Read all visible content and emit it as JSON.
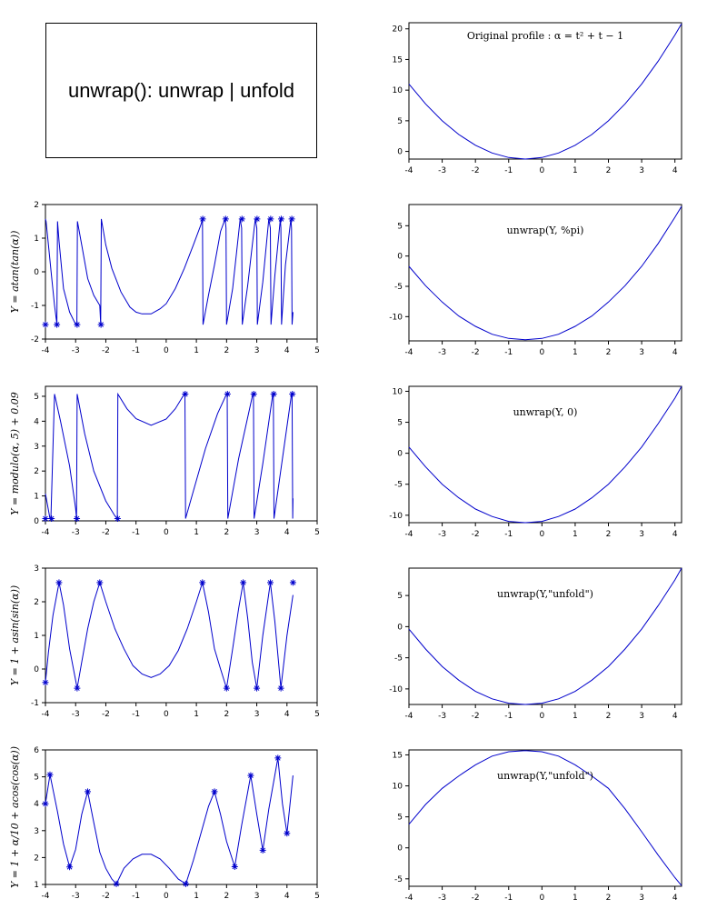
{
  "header": {
    "title": "unwrap(): unwrap | unfold"
  },
  "chart_data": [
    {
      "id": "original",
      "type": "line",
      "xlim": [
        -4,
        4.2
      ],
      "ylim": [
        -1.25,
        21
      ],
      "xticks": [
        -4,
        -3,
        -2,
        -1,
        0,
        1,
        2,
        3,
        4
      ],
      "yticks": [
        0,
        5,
        10,
        15,
        20
      ],
      "annotation": "Original profile :  α = t² + t − 1",
      "ylabel": "",
      "markers": false,
      "series": [
        {
          "color": "#0000cc",
          "x": [
            -4,
            -3.5,
            -3,
            -2.5,
            -2,
            -1.5,
            -1,
            -0.5,
            0,
            0.5,
            1,
            1.5,
            2,
            2.5,
            3,
            3.5,
            4,
            4.2
          ],
          "y": [
            11,
            7.75,
            5,
            2.75,
            1,
            -0.25,
            -1,
            -1.25,
            -1,
            -0.25,
            1,
            2.75,
            5,
            7.75,
            11,
            14.75,
            19,
            20.84
          ]
        }
      ]
    },
    {
      "id": "atan",
      "type": "line",
      "xlim": [
        -4,
        5
      ],
      "ylim": [
        -2,
        2
      ],
      "xticks": [
        -4,
        -3,
        -2,
        -1,
        0,
        1,
        2,
        3,
        4,
        5
      ],
      "yticks": [
        -2,
        -1,
        0,
        1,
        2
      ],
      "ylabel": "Y = atan(tan(α))",
      "annotation": "",
      "markers": true,
      "series": [
        {
          "color": "#0000cc",
          "x": [
            -4,
            -3.98,
            -3.9,
            -3.8,
            -3.7,
            -3.62,
            -3.6,
            -3.55,
            -3.4,
            -3.2,
            -3.0,
            -2.96,
            -2.94,
            -2.8,
            -2.6,
            -2.4,
            -2.2,
            -2.17,
            -2.15,
            -2.0,
            -1.8,
            -1.5,
            -1.2,
            -1.0,
            -0.8,
            -0.5,
            -0.2,
            0,
            0.3,
            0.6,
            0.9,
            1.15,
            1.2,
            1.22,
            1.4,
            1.6,
            1.8,
            1.95,
            1.98,
            2.0,
            2.2,
            2.45,
            2.5,
            2.52,
            2.7,
            2.95,
            3.0,
            3.02,
            3.2,
            3.4,
            3.45,
            3.47,
            3.6,
            3.78,
            3.8,
            3.82,
            3.95,
            4.13,
            4.15,
            4.17,
            4.2
          ],
          "y": [
            1.57,
            1.5,
            0.8,
            -0.1,
            -1.0,
            -1.55,
            1.5,
            0.9,
            -0.5,
            -1.2,
            -1.56,
            -1.57,
            1.5,
            0.8,
            -0.2,
            -0.7,
            -1.0,
            -1.56,
            1.57,
            0.8,
            0.1,
            -0.6,
            -1.05,
            -1.2,
            -1.25,
            -1.25,
            -1.1,
            -0.95,
            -0.5,
            0.1,
            0.8,
            1.4,
            1.57,
            -1.57,
            -0.7,
            0.2,
            1.2,
            1.57,
            1.3,
            -1.57,
            -0.5,
            1.57,
            1.3,
            -1.57,
            -0.4,
            1.57,
            1.3,
            -1.57,
            -0.3,
            1.57,
            1.3,
            -1.57,
            -0.1,
            1.57,
            1.3,
            -1.57,
            0.2,
            1.57,
            1.3,
            -1.57,
            -1.2
          ],
          "markers_x": [
            -4,
            -3.62,
            -2.95,
            -2.16,
            1.21,
            1.97,
            2.51,
            3.01,
            3.46,
            3.81,
            4.16
          ],
          "markers_y": [
            -1.57,
            -1.57,
            -1.57,
            -1.57,
            1.57,
            1.57,
            1.57,
            1.57,
            1.57,
            1.57,
            1.57
          ]
        }
      ]
    },
    {
      "id": "unwrap-pi",
      "type": "line",
      "xlim": [
        -4,
        4.2
      ],
      "ylim": [
        -14,
        8.5
      ],
      "xticks": [
        -4,
        -3,
        -2,
        -1,
        0,
        1,
        2,
        3,
        4
      ],
      "yticks": [
        -10,
        -5,
        0,
        5
      ],
      "annotation": "unwrap(Y, %pi)",
      "ylabel": "",
      "markers": false,
      "series": [
        {
          "color": "#0000cc",
          "x": [
            -4,
            -3.5,
            -3,
            -2.5,
            -2,
            -1.5,
            -1,
            -0.5,
            0,
            0.5,
            1,
            1.5,
            2,
            2.5,
            3,
            3.5,
            4,
            4.2
          ],
          "y": [
            -1.7,
            -4.9,
            -7.6,
            -9.9,
            -11.6,
            -12.9,
            -13.6,
            -13.8,
            -13.6,
            -12.9,
            -11.6,
            -9.9,
            -7.6,
            -4.9,
            -1.7,
            2.1,
            6.4,
            8.2
          ]
        }
      ]
    },
    {
      "id": "modulo",
      "type": "line",
      "xlim": [
        -4,
        5
      ],
      "ylim": [
        0,
        5.4
      ],
      "xticks": [
        -4,
        -3,
        -2,
        -1,
        0,
        1,
        2,
        3,
        4,
        5
      ],
      "yticks": [
        0,
        1,
        2,
        3,
        4,
        5
      ],
      "ylabel": "Y = modulo(α, 5) + 0.09",
      "annotation": "",
      "markers": true,
      "series": [
        {
          "color": "#0000cc",
          "x": [
            -4,
            -3.85,
            -3.82,
            -3.7,
            -3.5,
            -3.2,
            -3.0,
            -2.97,
            -2.95,
            -2.7,
            -2.4,
            -2.0,
            -1.7,
            -1.62,
            -1.6,
            -1.3,
            -1.0,
            -0.5,
            0,
            0.3,
            0.6,
            0.62,
            0.64,
            0.9,
            1.3,
            1.7,
            2.0,
            2.02,
            2.04,
            2.4,
            2.87,
            2.89,
            2.91,
            3.2,
            3.53,
            3.55,
            3.57,
            3.85,
            4.15,
            4.17,
            4.19,
            4.2
          ],
          "y": [
            1.09,
            0.09,
            0.09,
            5.09,
            4.0,
            2.2,
            0.5,
            0.09,
            5.09,
            3.5,
            2.0,
            0.8,
            0.2,
            0.09,
            5.09,
            4.5,
            4.1,
            3.84,
            4.09,
            4.5,
            5.09,
            5.09,
            0.09,
            1.2,
            2.9,
            4.3,
            5.09,
            5.09,
            0.09,
            2.5,
            5.09,
            5.09,
            0.09,
            2.3,
            5.09,
            5.09,
            0.09,
            2.5,
            5.09,
            5.09,
            0.09,
            0.9
          ],
          "markers_x": [
            -4,
            -3.8,
            -2.96,
            -1.61,
            0.63,
            2.03,
            2.9,
            3.56,
            4.18
          ],
          "markers_y": [
            0.09,
            0.09,
            0.09,
            0.09,
            5.09,
            5.09,
            5.09,
            5.09,
            5.09
          ]
        }
      ]
    },
    {
      "id": "unwrap-0",
      "type": "line",
      "xlim": [
        -4,
        4.2
      ],
      "ylim": [
        -11.2,
        10.8
      ],
      "xticks": [
        -4,
        -3,
        -2,
        -1,
        0,
        1,
        2,
        3,
        4
      ],
      "yticks": [
        -10,
        -5,
        0,
        5,
        10
      ],
      "annotation": "unwrap(Y, 0)",
      "ylabel": "",
      "markers": false,
      "series": [
        {
          "color": "#0000cc",
          "x": [
            -4,
            -3.5,
            -3,
            -2.5,
            -2,
            -1.5,
            -1,
            -0.5,
            0,
            0.5,
            1,
            1.5,
            2,
            2.5,
            3,
            3.5,
            4,
            4.2
          ],
          "y": [
            1.0,
            -2.2,
            -5,
            -7.2,
            -9,
            -10.2,
            -11,
            -11.2,
            -11,
            -10.2,
            -9,
            -7.2,
            -5,
            -2.2,
            1,
            4.8,
            8.9,
            10.8
          ]
        }
      ]
    },
    {
      "id": "asin",
      "type": "line",
      "xlim": [
        -4,
        5
      ],
      "ylim": [
        -1,
        3
      ],
      "xticks": [
        -4,
        -3,
        -2,
        -1,
        0,
        1,
        2,
        3,
        4,
        5
      ],
      "yticks": [
        -1,
        0,
        1,
        2,
        3
      ],
      "ylabel": "Y = 1 + asin(sin(α))",
      "annotation": "",
      "markers": true,
      "series": [
        {
          "color": "#0000cc",
          "x": [
            -4,
            -3.9,
            -3.75,
            -3.55,
            -3.4,
            -3.2,
            -2.95,
            -2.8,
            -2.6,
            -2.4,
            -2.2,
            -2.0,
            -1.7,
            -1.4,
            -1.1,
            -0.8,
            -0.5,
            -0.2,
            0.1,
            0.4,
            0.7,
            1.0,
            1.2,
            1.4,
            1.6,
            1.8,
            2.0,
            2.2,
            2.4,
            2.55,
            2.7,
            2.85,
            3.0,
            3.2,
            3.45,
            3.6,
            3.8,
            4.0,
            4.2
          ],
          "y": [
            -0.4,
            0.5,
            1.6,
            2.57,
            1.9,
            0.6,
            -0.57,
            0.2,
            1.2,
            2.0,
            2.57,
            2.0,
            1.2,
            0.6,
            0.1,
            -0.15,
            -0.25,
            -0.15,
            0.1,
            0.55,
            1.2,
            2.0,
            2.57,
            1.7,
            0.6,
            0.0,
            -0.57,
            0.6,
            1.8,
            2.57,
            1.5,
            0.2,
            -0.57,
            1.0,
            2.57,
            1.4,
            -0.57,
            1.0,
            2.2
          ],
          "markers_x": [
            -4,
            -3.55,
            -2.95,
            -2.2,
            1.2,
            2.0,
            2.55,
            3.0,
            3.45,
            3.8,
            4.2
          ],
          "markers_y": [
            -0.4,
            2.57,
            -0.57,
            2.57,
            2.57,
            -0.57,
            2.57,
            -0.57,
            2.57,
            -0.57,
            2.57
          ]
        }
      ]
    },
    {
      "id": "unfold-1",
      "type": "line",
      "xlim": [
        -4,
        4.2
      ],
      "ylim": [
        -12.5,
        9.4
      ],
      "xticks": [
        -4,
        -3,
        -2,
        -1,
        0,
        1,
        2,
        3,
        4
      ],
      "yticks": [
        -10,
        -5,
        0,
        5
      ],
      "annotation": "unwrap(Y,\"unfold\")",
      "ylabel": "",
      "markers": false,
      "series": [
        {
          "color": "#0000cc",
          "x": [
            -4,
            -3.5,
            -3,
            -2.5,
            -2,
            -1.5,
            -1,
            -0.5,
            0,
            0.5,
            1,
            1.5,
            2,
            2.5,
            3,
            3.5,
            4,
            4.2
          ],
          "y": [
            -0.4,
            -3.6,
            -6.4,
            -8.6,
            -10.4,
            -11.6,
            -12.3,
            -12.5,
            -12.3,
            -11.6,
            -10.4,
            -8.6,
            -6.4,
            -3.6,
            -0.4,
            3.4,
            7.5,
            9.4
          ]
        }
      ]
    },
    {
      "id": "acos",
      "type": "line",
      "xlim": [
        -4,
        5
      ],
      "ylim": [
        1,
        6
      ],
      "xticks": [
        -4,
        -3,
        -2,
        -1,
        0,
        1,
        2,
        3,
        4,
        5
      ],
      "yticks": [
        1,
        2,
        3,
        4,
        5,
        6
      ],
      "ylabel": "Y = 1 + α/10 + acos(cos(α))",
      "annotation": "",
      "markers": true,
      "series": [
        {
          "color": "#0000cc",
          "x": [
            -4,
            -3.85,
            -3.6,
            -3.4,
            -3.2,
            -3.0,
            -2.8,
            -2.6,
            -2.4,
            -2.2,
            -2.0,
            -1.8,
            -1.65,
            -1.4,
            -1.1,
            -0.8,
            -0.5,
            -0.2,
            0.1,
            0.4,
            0.65,
            0.9,
            1.2,
            1.4,
            1.6,
            1.8,
            2.0,
            2.27,
            2.5,
            2.8,
            3.0,
            3.2,
            3.4,
            3.7,
            3.85,
            4.0,
            4.2
          ],
          "y": [
            4.0,
            5.08,
            3.7,
            2.5,
            1.65,
            2.3,
            3.6,
            4.45,
            3.3,
            2.2,
            1.6,
            1.2,
            1.02,
            1.6,
            1.95,
            2.12,
            2.12,
            1.95,
            1.6,
            1.2,
            1.02,
            1.9,
            3.1,
            3.9,
            4.45,
            3.6,
            2.6,
            1.66,
            3.2,
            5.05,
            3.6,
            2.27,
            3.8,
            5.7,
            4.0,
            2.9,
            5.05
          ],
          "markers_x": [
            -4,
            -3.85,
            -3.2,
            -2.6,
            -1.65,
            0.65,
            1.6,
            2.27,
            2.8,
            3.2,
            3.7,
            4.0
          ],
          "markers_y": [
            4.0,
            5.08,
            1.65,
            4.45,
            1.02,
            1.02,
            4.45,
            1.66,
            5.05,
            2.27,
            5.7,
            2.9
          ]
        }
      ]
    },
    {
      "id": "unfold-2",
      "type": "line",
      "xlim": [
        -4,
        4.2
      ],
      "ylim": [
        -6.2,
        15.8
      ],
      "xticks": [
        -4,
        -3,
        -2,
        -1,
        0,
        1,
        2,
        3,
        4
      ],
      "yticks": [
        -5,
        0,
        5,
        10,
        15
      ],
      "annotation": "unwrap(Y,\"unfold\")",
      "ylabel": "",
      "markers": false,
      "series": [
        {
          "color": "#0000cc",
          "x": [
            -4,
            -3.5,
            -3,
            -2.5,
            -2,
            -1.5,
            -1,
            -0.5,
            0,
            0.5,
            1,
            1.5,
            2,
            2.5,
            3,
            3.5,
            4,
            4.2
          ],
          "y": [
            3.8,
            7.0,
            9.6,
            11.6,
            13.4,
            14.8,
            15.5,
            15.7,
            15.5,
            14.8,
            13.4,
            11.6,
            9.6,
            6.3,
            2.6,
            -1.2,
            -4.8,
            -6.1
          ]
        }
      ]
    }
  ]
}
